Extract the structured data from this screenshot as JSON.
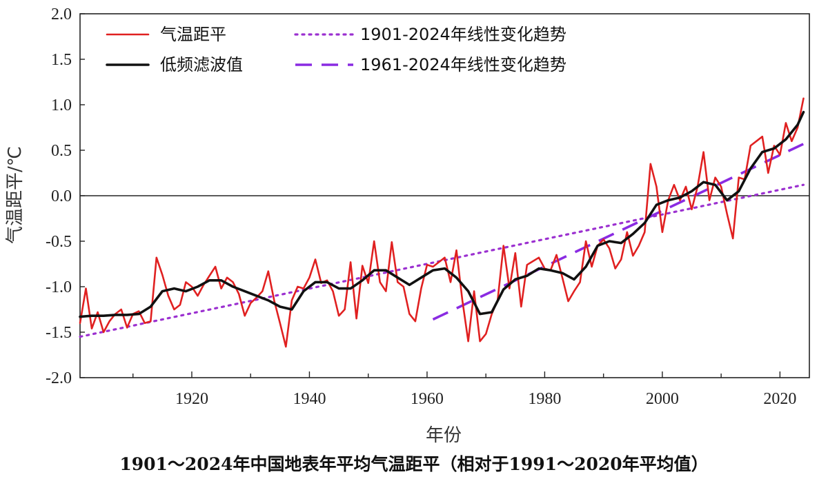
{
  "chart_data": {
    "type": "line",
    "title": "1901～2024年中国地表年平均气温距平（相对于1991～2020年平均值）",
    "xlabel": "年份",
    "ylabel": "气温距平/℃",
    "xlim": [
      1901,
      2025
    ],
    "ylim": [
      -2.0,
      2.0
    ],
    "x_ticks": [
      1920,
      1940,
      1960,
      1980,
      2000,
      2020
    ],
    "y_ticks": [
      -2.0,
      -1.5,
      -1.0,
      -0.5,
      0.0,
      0.5,
      1.0,
      1.5,
      2.0
    ],
    "y_tick_labels": [
      "-2.0",
      "-1.5",
      "-1.0",
      "-0.5",
      "0.0",
      "0.5",
      "1.0",
      "1.5",
      "2.0"
    ],
    "zero_line": true,
    "grid": false,
    "legend_position": "top-left",
    "series": [
      {
        "name": "气温距平",
        "style": "solid",
        "color": "#e02020",
        "x": [
          1901,
          1902,
          1903,
          1904,
          1905,
          1906,
          1907,
          1908,
          1909,
          1910,
          1911,
          1912,
          1913,
          1914,
          1915,
          1916,
          1917,
          1918,
          1919,
          1920,
          1921,
          1922,
          1923,
          1924,
          1925,
          1926,
          1927,
          1928,
          1929,
          1930,
          1931,
          1932,
          1933,
          1934,
          1935,
          1936,
          1937,
          1938,
          1939,
          1940,
          1941,
          1942,
          1943,
          1944,
          1945,
          1946,
          1947,
          1948,
          1949,
          1950,
          1951,
          1952,
          1953,
          1954,
          1955,
          1956,
          1957,
          1958,
          1959,
          1960,
          1961,
          1962,
          1963,
          1964,
          1965,
          1966,
          1967,
          1968,
          1969,
          1970,
          1971,
          1972,
          1973,
          1974,
          1975,
          1976,
          1977,
          1978,
          1979,
          1980,
          1981,
          1982,
          1983,
          1984,
          1985,
          1986,
          1987,
          1988,
          1989,
          1990,
          1991,
          1992,
          1993,
          1994,
          1995,
          1996,
          1997,
          1998,
          1999,
          2000,
          2001,
          2002,
          2003,
          2004,
          2005,
          2006,
          2007,
          2008,
          2009,
          2010,
          2011,
          2012,
          2013,
          2014,
          2015,
          2016,
          2017,
          2018,
          2019,
          2020,
          2021,
          2022,
          2023,
          2024
        ],
        "y": [
          -1.4,
          -1.02,
          -1.46,
          -1.28,
          -1.5,
          -1.38,
          -1.3,
          -1.25,
          -1.45,
          -1.3,
          -1.27,
          -1.4,
          -1.38,
          -0.68,
          -0.87,
          -1.1,
          -1.25,
          -1.2,
          -0.95,
          -1.0,
          -1.1,
          -0.98,
          -0.88,
          -0.78,
          -1.02,
          -0.9,
          -0.95,
          -1.08,
          -1.32,
          -1.18,
          -1.12,
          -1.05,
          -0.83,
          -1.15,
          -1.4,
          -1.66,
          -1.15,
          -1.0,
          -1.02,
          -0.9,
          -0.7,
          -0.96,
          -0.93,
          -1.05,
          -1.32,
          -1.25,
          -0.73,
          -1.35,
          -0.77,
          -0.96,
          -0.5,
          -0.95,
          -1.05,
          -0.51,
          -0.95,
          -1.0,
          -1.3,
          -1.38,
          -1.02,
          -0.76,
          -0.78,
          -0.73,
          -0.68,
          -0.95,
          -0.6,
          -1.15,
          -1.6,
          -1.05,
          -1.6,
          -1.52,
          -1.3,
          -1.15,
          -0.55,
          -1.02,
          -0.63,
          -1.22,
          -0.76,
          -0.72,
          -0.68,
          -0.8,
          -0.82,
          -0.65,
          -0.9,
          -1.16,
          -1.05,
          -0.95,
          -0.5,
          -0.78,
          -0.55,
          -0.48,
          -0.58,
          -0.8,
          -0.7,
          -0.4,
          -0.66,
          -0.55,
          -0.4,
          0.35,
          0.1,
          -0.4,
          -0.05,
          0.12,
          -0.05,
          0.1,
          -0.15,
          0.1,
          0.48,
          -0.05,
          0.2,
          0.1,
          -0.2,
          -0.47,
          0.2,
          0.18,
          0.55,
          0.6,
          0.65,
          0.25,
          0.55,
          0.45,
          0.8,
          0.6,
          0.75,
          1.07
        ]
      },
      {
        "name": "低频滤波值",
        "style": "solid",
        "color": "#111111",
        "x": [
          1901,
          1903,
          1905,
          1907,
          1909,
          1911,
          1913,
          1915,
          1917,
          1919,
          1921,
          1923,
          1925,
          1927,
          1929,
          1931,
          1933,
          1935,
          1937,
          1939,
          1941,
          1943,
          1945,
          1947,
          1949,
          1951,
          1953,
          1955,
          1957,
          1959,
          1961,
          1963,
          1965,
          1967,
          1969,
          1971,
          1973,
          1975,
          1977,
          1979,
          1981,
          1983,
          1985,
          1987,
          1989,
          1991,
          1993,
          1995,
          1997,
          1999,
          2001,
          2003,
          2005,
          2007,
          2009,
          2011,
          2013,
          2015,
          2017,
          2019,
          2021,
          2023,
          2024
        ],
        "y": [
          -1.33,
          -1.32,
          -1.32,
          -1.31,
          -1.31,
          -1.3,
          -1.22,
          -1.05,
          -1.02,
          -1.05,
          -1.0,
          -0.93,
          -0.93,
          -1.0,
          -1.05,
          -1.1,
          -1.15,
          -1.22,
          -1.25,
          -1.05,
          -0.95,
          -0.95,
          -1.02,
          -1.02,
          -0.93,
          -0.82,
          -0.82,
          -0.9,
          -0.98,
          -0.9,
          -0.82,
          -0.8,
          -0.9,
          -1.05,
          -1.3,
          -1.28,
          -1.03,
          -0.92,
          -0.88,
          -0.8,
          -0.82,
          -0.85,
          -0.92,
          -0.78,
          -0.55,
          -0.5,
          -0.52,
          -0.42,
          -0.3,
          -0.1,
          -0.05,
          -0.02,
          0.05,
          0.15,
          0.12,
          -0.05,
          0.05,
          0.3,
          0.48,
          0.52,
          0.62,
          0.78,
          0.92
        ]
      },
      {
        "name": "1901-2024年线性变化趋势",
        "style": "dotted",
        "color": "#9b30d0",
        "x": [
          1901,
          2024
        ],
        "y": [
          -1.55,
          0.12
        ]
      },
      {
        "name": "1961-2024年线性变化趋势",
        "style": "dashed",
        "color": "#8a2be2",
        "x": [
          1961,
          2024
        ],
        "y": [
          -1.36,
          0.57
        ]
      }
    ]
  }
}
